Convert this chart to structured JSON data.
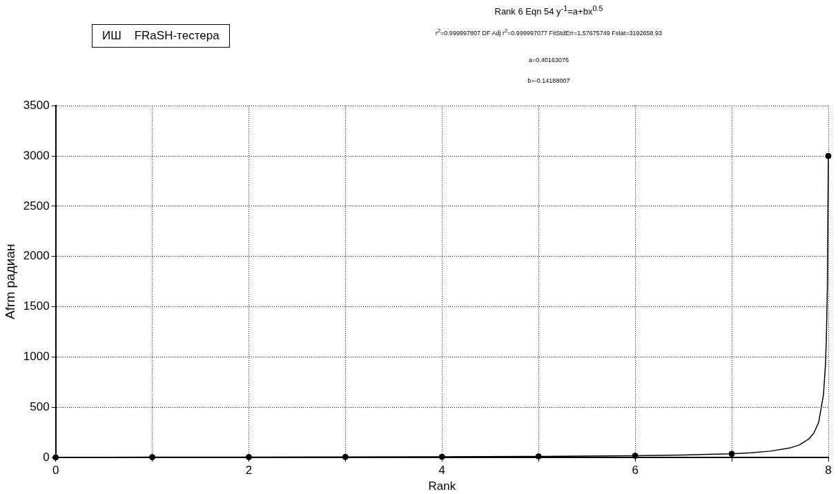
{
  "chart_data": {
    "type": "scatter",
    "title": "Rank 6  Eqn 54  y$^{-1}$=a+bx$^{0.5}$",
    "subtitle": "r$^{2}$=0.999997807  DF Adj r$^{2}$=0.999997077  FitStdErr=1.57675749  Fstat=3192658.93",
    "annotations": [
      "a=0.40163076",
      "b=-0.14188007",
      "ИШ    FRaSH-тестера"
    ],
    "xlabel": "Rank",
    "ylabel": "Afrm радиан",
    "xlim": [
      0,
      8
    ],
    "ylim": [
      0,
      3500
    ],
    "xticks": [
      0,
      {
        "value": 1,
        "label": null
      },
      2,
      {
        "value": 3,
        "label": null
      },
      4,
      {
        "value": 5,
        "label": null
      },
      6,
      {
        "value": 7,
        "label": null
      },
      8
    ],
    "yticks": [
      0,
      500,
      1000,
      1500,
      2000,
      2500,
      3000,
      3500
    ],
    "grid": true,
    "legend": false,
    "series": [
      {
        "color": "#000000",
        "marker": "circle",
        "x": [
          0,
          1,
          2,
          3,
          4,
          5,
          6,
          7,
          8
        ],
        "values": [
          2,
          4,
          5,
          6,
          8,
          12,
          18,
          38,
          3000
        ]
      },
      {
        "type": "line",
        "color": "#000000",
        "marker": "none",
        "line_style": "solid",
        "x": [
          0,
          1,
          2,
          3,
          4,
          5,
          6,
          6.5,
          7,
          7.2,
          7.4,
          7.6,
          7.7,
          7.8,
          7.85,
          7.9,
          7.95,
          7.97,
          7.98,
          7.99,
          8
        ],
        "values": [
          2,
          4,
          5,
          6,
          8,
          12,
          18,
          25,
          38,
          48,
          64,
          95,
          126,
          186,
          243,
          351,
          629,
          917,
          1190,
          1695,
          3000
        ]
      }
    ]
  }
}
